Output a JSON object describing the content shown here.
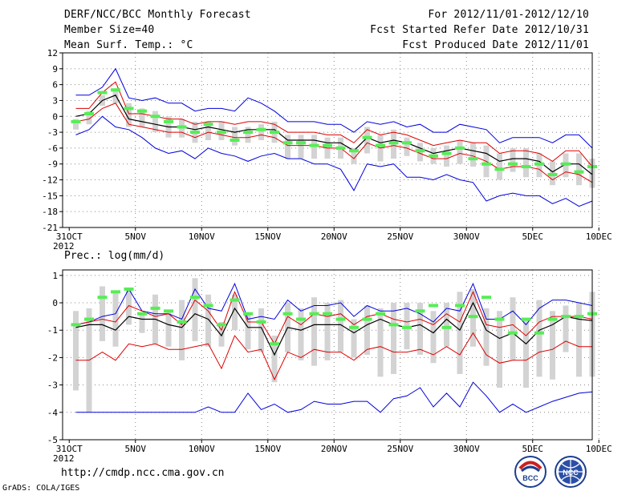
{
  "header": {
    "left_line1": "DERF/NCC/BCC Monthly Forecast",
    "left_line2": "Member Size=40",
    "left_line3": "Mean Surf. Temp.: °C",
    "right_line1": "For 2012/11/01-2012/12/10",
    "right_line2": "Fcst Started Refer Date 2012/10/31",
    "right_line3": "Fcst Produced Date 2012/11/01"
  },
  "footer": {
    "url": "http://cmdp.ncc.cma.gov.cn",
    "grads": "GrADS: COLA/IGES",
    "logo1_text": "BCC",
    "logo2_text": "NCC"
  },
  "colors": {
    "envelope": "#0000dd",
    "spread": "#dd0000",
    "mean": "#000000",
    "box": "#d3d3d3",
    "climatology": "#55ee55"
  },
  "chart_data": [
    {
      "type": "line",
      "title": "Mean Surf. Temp.: °C",
      "x_tick_labels": [
        "31OCT",
        "5NOV",
        "10NOV",
        "15NOV",
        "20NOV",
        "25NOV",
        "30NOV",
        "5DEC",
        "10DEC"
      ],
      "x_year_label": "2012",
      "x_start_label": "31OCT",
      "x_range_days": [
        0,
        40
      ],
      "ylim": [
        -21,
        12
      ],
      "yticks": [
        12,
        9,
        6,
        3,
        0,
        -3,
        -6,
        -9,
        -12,
        -15,
        -18,
        -21
      ],
      "days": [
        1,
        2,
        3,
        4,
        5,
        6,
        7,
        8,
        9,
        10,
        11,
        12,
        13,
        14,
        15,
        16,
        17,
        18,
        19,
        20,
        21,
        22,
        23,
        24,
        25,
        26,
        27,
        28,
        29,
        30,
        31,
        32,
        33,
        34,
        35,
        36,
        37,
        38,
        39,
        40
      ],
      "max": [
        4,
        4,
        5.5,
        9,
        3.5,
        3,
        3.5,
        2.5,
        2.5,
        1,
        1.5,
        1.5,
        1,
        3.5,
        2.5,
        1,
        -1,
        -1,
        -1,
        -1.5,
        -1.5,
        -3,
        -1,
        -1.5,
        -1,
        -2,
        -1.5,
        -3,
        -3,
        -1.5,
        -2,
        -2.5,
        -5,
        -4,
        -4,
        -4,
        -5,
        -3.5,
        -3.5,
        -6
      ],
      "upper": [
        1.5,
        1.5,
        4.5,
        6.5,
        0.5,
        0.5,
        0,
        -0.5,
        -0.5,
        -1.5,
        -1,
        -1,
        -1.5,
        -1,
        -1,
        -1.5,
        -3,
        -3,
        -3,
        -3.5,
        -3.5,
        -5,
        -2.5,
        -3.5,
        -3,
        -3.5,
        -4.5,
        -5.5,
        -5,
        -4.5,
        -5,
        -5,
        -7,
        -6.5,
        -6.5,
        -7,
        -8.5,
        -6.5,
        -6.5,
        -9.5
      ],
      "mean": [
        0,
        0.5,
        3,
        4,
        -0.5,
        -1,
        -1.5,
        -2,
        -2,
        -2.5,
        -2,
        -2.5,
        -3,
        -2.5,
        -2.5,
        -2.5,
        -4.5,
        -4.5,
        -4.5,
        -5,
        -5,
        -6.5,
        -4,
        -5,
        -4.5,
        -5,
        -6,
        -7,
        -6.5,
        -6,
        -6.5,
        -7,
        -8.5,
        -8,
        -8,
        -8.5,
        -10.5,
        -9,
        -9,
        -11
      ],
      "lower": [
        -1,
        -0.5,
        1.5,
        2.5,
        -1.5,
        -2,
        -2.5,
        -3,
        -3,
        -4,
        -3,
        -3.5,
        -4,
        -4,
        -3.5,
        -4,
        -5.5,
        -5.5,
        -5.5,
        -6,
        -6,
        -8,
        -5,
        -6,
        -5.5,
        -6,
        -7,
        -8,
        -8,
        -7,
        -7.5,
        -8.5,
        -10,
        -9.5,
        -9.5,
        -10,
        -12,
        -10.5,
        -11,
        -12.5
      ],
      "min": [
        -3.5,
        -2.5,
        0,
        -2,
        -2.5,
        -4,
        -6,
        -7,
        -6.5,
        -8,
        -6,
        -7,
        -7.5,
        -8.5,
        -7.5,
        -7,
        -8,
        -8,
        -9,
        -9,
        -10,
        -14,
        -9,
        -9.5,
        -9,
        -11.5,
        -11.5,
        -12,
        -11,
        -12,
        -12.5,
        -16,
        -15,
        -14.5,
        -15,
        -15,
        -16.5,
        -15.5,
        -17,
        -16
      ],
      "box_top": [
        -0.5,
        1,
        4,
        5,
        2.5,
        1.5,
        1,
        0,
        -0.5,
        -1,
        -1,
        -1,
        -2,
        -2,
        -1.5,
        -1,
        -3.5,
        -3.5,
        -3.5,
        -4,
        -4,
        -6,
        -2,
        -3.5,
        -2.5,
        -4,
        -5,
        -6,
        -5.5,
        -4.5,
        -5,
        -5.5,
        -7,
        -6,
        -6,
        -7,
        -8.5,
        -7,
        -7,
        -8
      ],
      "box_bottom": [
        -2.5,
        -1.5,
        2,
        2.5,
        -2,
        -2,
        -3,
        -4,
        -4,
        -5,
        -4.5,
        -4.5,
        -5.5,
        -5,
        -4.5,
        -5,
        -8,
        -8,
        -8,
        -8,
        -8,
        -9,
        -7,
        -8.5,
        -8,
        -7.5,
        -8.5,
        -9,
        -9.5,
        -9,
        -9.5,
        -11.5,
        -12,
        -10.5,
        -11.5,
        -11.5,
        -13,
        -11.5,
        -13,
        -13.5
      ],
      "climatology": [
        -1,
        0.5,
        4.5,
        5,
        1.5,
        1,
        0,
        -1,
        -2,
        -3,
        -1.5,
        -3,
        -4.5,
        -3,
        -2.5,
        -3,
        -5,
        -5,
        -5.5,
        -5.5,
        -6,
        -6.5,
        -4,
        -5.5,
        -5,
        -5,
        -6.5,
        -7.5,
        -7,
        -6,
        -8,
        -9,
        -10,
        -9,
        -9.5,
        -9,
        -11,
        -9,
        -10.5,
        -9.5
      ]
    },
    {
      "type": "line",
      "title": "Prec.: log(mm/d)",
      "x_tick_labels": [
        "31OCT",
        "5NOV",
        "10NOV",
        "15NOV",
        "20NOV",
        "25NOV",
        "30NOV",
        "5DEC",
        "10DEC"
      ],
      "x_year_label": "2012",
      "x_start_label": "31OCT",
      "x_range_days": [
        0,
        40
      ],
      "ylim": [
        -5,
        1.2
      ],
      "yticks": [
        1,
        0,
        -1,
        -2,
        -3,
        -4,
        -5
      ],
      "days": [
        1,
        2,
        3,
        4,
        5,
        6,
        7,
        8,
        9,
        10,
        11,
        12,
        13,
        14,
        15,
        16,
        17,
        18,
        19,
        20,
        21,
        22,
        23,
        24,
        25,
        26,
        27,
        28,
        29,
        30,
        31,
        32,
        33,
        34,
        35,
        36,
        37,
        38,
        39,
        40
      ],
      "max": [
        -0.8,
        -0.7,
        -0.5,
        -0.4,
        0.5,
        -0.3,
        -0.4,
        -0.4,
        -0.6,
        0.5,
        -0.2,
        -0.3,
        0.7,
        -0.6,
        -0.5,
        -0.6,
        0.1,
        -0.3,
        -0.1,
        -0.1,
        0,
        -0.5,
        -0.1,
        -0.3,
        -0.3,
        -0.2,
        -0.4,
        -0.7,
        -0.2,
        -0.3,
        0.7,
        -0.6,
        -0.6,
        -0.3,
        -0.8,
        -0.2,
        0.1,
        0.1,
        0,
        -0.1
      ],
      "upper": [
        -0.8,
        -0.7,
        -0.6,
        -0.7,
        -0.1,
        -0.3,
        -0.5,
        -0.4,
        -0.8,
        0.1,
        -0.3,
        -1,
        0.4,
        -0.7,
        -0.7,
        -1.5,
        -0.5,
        -0.8,
        -0.4,
        -0.5,
        -0.4,
        -0.8,
        -0.5,
        -0.4,
        -0.6,
        -0.7,
        -0.6,
        -0.8,
        -0.4,
        -0.7,
        0.4,
        -0.8,
        -0.9,
        -0.8,
        -1.2,
        -0.7,
        -0.5,
        -0.5,
        -0.5,
        -0.6
      ],
      "mean": [
        -0.9,
        -0.8,
        -0.8,
        -1,
        -0.5,
        -0.6,
        -0.6,
        -0.8,
        -0.9,
        -0.4,
        -0.6,
        -1.2,
        -0.2,
        -0.9,
        -0.9,
        -1.9,
        -0.9,
        -1,
        -0.8,
        -0.8,
        -0.8,
        -1.1,
        -0.8,
        -0.6,
        -0.8,
        -0.9,
        -0.8,
        -1.1,
        -0.6,
        -1,
        0,
        -1,
        -1.3,
        -1.1,
        -1.5,
        -1,
        -0.8,
        -0.5,
        -0.6,
        -0.65
      ],
      "lower": [
        -2.1,
        -2.1,
        -1.8,
        -2.1,
        -1.5,
        -1.6,
        -1.5,
        -1.7,
        -1.7,
        -1.6,
        -1.5,
        -2.4,
        -1.2,
        -1.8,
        -1.7,
        -2.8,
        -1.8,
        -2,
        -1.7,
        -1.8,
        -1.8,
        -2.1,
        -1.7,
        -1.6,
        -1.8,
        -1.8,
        -1.7,
        -1.9,
        -1.6,
        -1.9,
        -1.1,
        -1.9,
        -2.2,
        -2.1,
        -2.1,
        -1.8,
        -1.7,
        -1.4,
        -1.6,
        -1.6
      ],
      "min": [
        -4,
        -4,
        -4,
        -4,
        -4,
        -4,
        -4,
        -4,
        -4,
        -4,
        -3.8,
        -4,
        -4,
        -3.3,
        -3.9,
        -3.7,
        -4,
        -3.9,
        -3.6,
        -3.7,
        -3.7,
        -3.6,
        -3.6,
        -4,
        -3.5,
        -3.4,
        -3.1,
        -3.8,
        -3.3,
        -3.8,
        -2.9,
        -3.4,
        -4,
        -3.7,
        -4,
        -3.8,
        -3.6,
        -3.45,
        -3.3,
        -3.25
      ],
      "box_top": [
        -0.3,
        -0.2,
        0.6,
        0.4,
        0.5,
        -0.4,
        0.3,
        -0.3,
        0.1,
        0.9,
        0.3,
        -0.7,
        0.3,
        -0.4,
        -0.2,
        -1.2,
        0,
        -0.2,
        0.2,
        0,
        0.1,
        -0.6,
        -0.1,
        -0.2,
        0,
        0,
        0,
        -0.3,
        0,
        0.4,
        0.5,
        -0.2,
        -0.3,
        0.2,
        -0.6,
        0.1,
        -0.3,
        -0.1,
        0,
        0.4
      ],
      "box_bottom": [
        -3.2,
        -4,
        -1.4,
        -1.6,
        -0.8,
        -1.1,
        -1.5,
        -1.6,
        -2.1,
        -1.4,
        -1.6,
        -1.6,
        -1,
        -1.7,
        -1.8,
        -2.9,
        -1.8,
        -2.1,
        -2.3,
        -2.1,
        -1.8,
        -2,
        -1.9,
        -2.7,
        -2.6,
        -1.7,
        -1.9,
        -2.2,
        -1.6,
        -2.6,
        -1.6,
        -2.3,
        -3.1,
        -2.1,
        -3.1,
        -2.7,
        -2.8,
        -1.8,
        -2.7,
        -2.7
      ],
      "climatology": [
        -0.8,
        -0.6,
        0.2,
        0.4,
        0.5,
        -0.4,
        -0.2,
        -0.3,
        -0.7,
        0.2,
        -0.1,
        -0.8,
        0.1,
        -0.4,
        -0.7,
        -1.5,
        -0.4,
        -0.6,
        -0.4,
        -0.4,
        -0.6,
        -0.9,
        -0.6,
        -0.4,
        -0.8,
        -0.9,
        -0.3,
        -0.1,
        -0.9,
        -0.1,
        -0.5,
        0.2,
        -0.6,
        -1.1,
        -0.6,
        -1.1,
        -0.6,
        -0.5,
        -0.5,
        -0.4
      ]
    }
  ]
}
